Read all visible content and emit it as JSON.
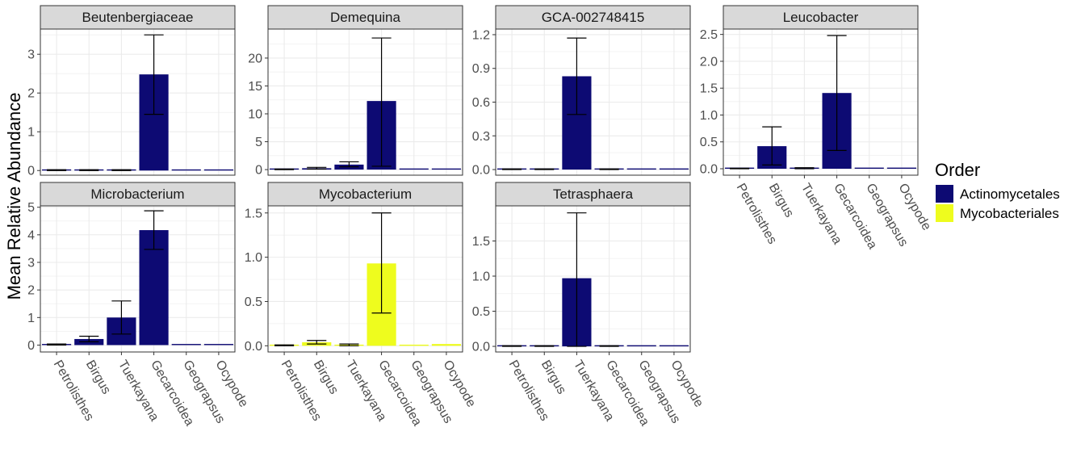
{
  "chart_data": {
    "type": "bar",
    "ylabel": "Mean Relative Abundance",
    "xlabel": "",
    "categories": [
      "Petrolisthes",
      "Birgus",
      "Tuerkayana",
      "Gecarcoidea",
      "Geograpsus",
      "Ocypode"
    ],
    "legend": {
      "title": "Order",
      "position": "right",
      "entries": [
        {
          "label": "Actinomycetales",
          "color": "#0d0a73"
        },
        {
          "label": "Mycobacteriales",
          "color": "#eefc1e"
        }
      ]
    },
    "grid": true,
    "facets": [
      {
        "title": "Beutenbergiaceae",
        "order": "Actinomycetales",
        "ylim": [
          -0.12,
          3.65
        ],
        "yticks": [
          "0",
          "1",
          "2",
          "3"
        ],
        "yticks_values": [
          0,
          1,
          2,
          3
        ],
        "values": [
          0.01,
          0.01,
          0.01,
          2.48,
          0.01,
          0.01
        ],
        "err_low": [
          0.0,
          0.0,
          0.0,
          1.45,
          null,
          null
        ],
        "err_high": [
          0.02,
          0.02,
          0.02,
          3.5,
          null,
          null
        ]
      },
      {
        "title": "Demequina",
        "order": "Actinomycetales",
        "ylim": [
          -1.0,
          25.2
        ],
        "yticks": [
          "0",
          "5",
          "10",
          "15",
          "20"
        ],
        "yticks_values": [
          0,
          5,
          10,
          15,
          20
        ],
        "values": [
          0.05,
          0.25,
          0.9,
          12.3,
          0,
          0
        ],
        "err_low": [
          0.0,
          0.1,
          0.5,
          0.6,
          null,
          null
        ],
        "err_high": [
          0.1,
          0.4,
          1.4,
          23.6,
          null,
          null
        ]
      },
      {
        "title": "GCA-002748415",
        "order": "Actinomycetales",
        "ylim": [
          -0.05,
          1.25
        ],
        "yticks": [
          "0.0",
          "0.3",
          "0.6",
          "0.9",
          "1.2"
        ],
        "yticks_values": [
          0,
          0.3,
          0.6,
          0.9,
          1.2
        ],
        "values": [
          0.003,
          0.003,
          0.83,
          0.003,
          0,
          0.001
        ],
        "err_low": [
          0.0,
          0.0,
          0.49,
          0.0,
          null,
          null
        ],
        "err_high": [
          0.006,
          0.006,
          1.17,
          0.006,
          null,
          null
        ]
      },
      {
        "title": "Leucobacter",
        "order": "Actinomycetales",
        "ylim": [
          -0.12,
          2.6
        ],
        "yticks": [
          "0.0",
          "0.5",
          "1.0",
          "1.5",
          "2.0",
          "2.5"
        ],
        "yticks_values": [
          0,
          0.5,
          1.0,
          1.5,
          2.0,
          2.5
        ],
        "values": [
          0.0,
          0.42,
          0.01,
          1.41,
          0,
          0
        ],
        "err_low": [
          0.0,
          0.07,
          0.0,
          0.34,
          null,
          null
        ],
        "err_high": [
          0.01,
          0.78,
          0.02,
          2.48,
          null,
          null
        ]
      },
      {
        "title": "Microbacterium",
        "order": "Actinomycetales",
        "ylim": [
          -0.25,
          5.05
        ],
        "yticks": [
          "0",
          "1",
          "2",
          "3",
          "4",
          "5"
        ],
        "yticks_values": [
          0,
          1,
          2,
          3,
          4,
          5
        ],
        "values": [
          0.02,
          0.22,
          1.0,
          4.17,
          0.04,
          0.04
        ],
        "err_low": [
          0.0,
          0.12,
          0.4,
          3.47,
          null,
          null
        ],
        "err_high": [
          0.04,
          0.32,
          1.6,
          4.87,
          null,
          null
        ]
      },
      {
        "title": "Mycobacterium",
        "order": "Mycobacteriales",
        "ylim": [
          -0.07,
          1.58
        ],
        "yticks": [
          "0.0",
          "0.5",
          "1.0",
          "1.5"
        ],
        "yticks_values": [
          0,
          0.5,
          1.0,
          1.5
        ],
        "values": [
          0.0,
          0.04,
          0.01,
          0.93,
          0,
          0.02
        ],
        "err_low": [
          0.0,
          0.02,
          0.0,
          0.37,
          null,
          null
        ],
        "err_high": [
          0.01,
          0.06,
          0.02,
          1.5,
          null,
          null
        ]
      },
      {
        "title": "Tetrasphaera",
        "order": "Actinomycetales",
        "ylim": [
          -0.08,
          2.0
        ],
        "yticks": [
          "0.0",
          "0.5",
          "1.0",
          "1.5"
        ],
        "yticks_values": [
          0,
          0.5,
          1.0,
          1.5
        ],
        "values": [
          0.0,
          0.005,
          0.97,
          0.005,
          0.005,
          0
        ],
        "err_low": [
          0.0,
          0.0,
          0.0,
          0.0,
          null,
          null
        ],
        "err_high": [
          0.01,
          0.01,
          1.9,
          0.01,
          null,
          null
        ]
      }
    ]
  }
}
